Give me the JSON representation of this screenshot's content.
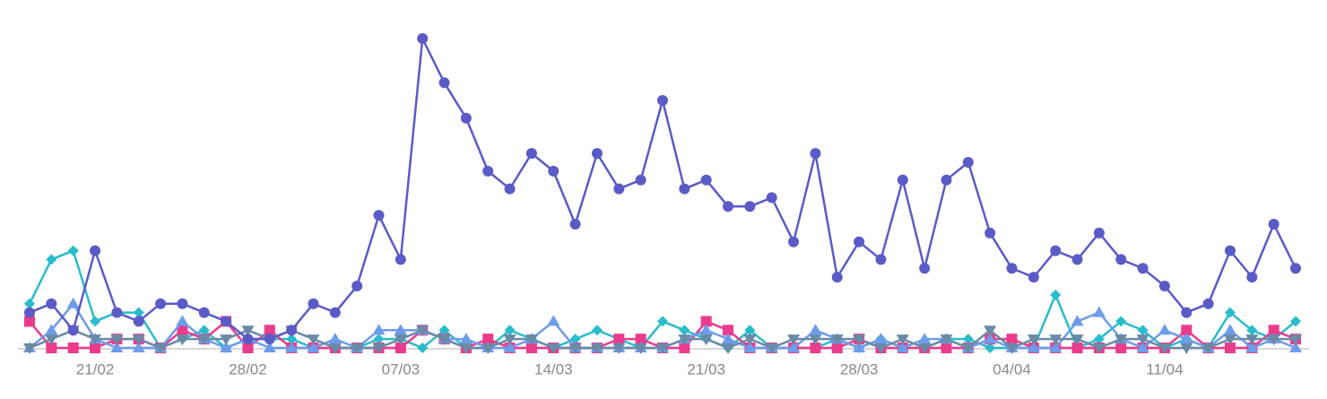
{
  "chart_data": {
    "type": "line",
    "categories": [
      null,
      null,
      null,
      "21/02",
      null,
      null,
      null,
      null,
      null,
      null,
      "28/02",
      null,
      null,
      null,
      null,
      null,
      null,
      "07/03",
      null,
      null,
      null,
      null,
      null,
      null,
      "14/03",
      null,
      null,
      null,
      null,
      null,
      null,
      "21/03",
      null,
      null,
      null,
      null,
      null,
      null,
      "28/03",
      null,
      null,
      null,
      null,
      null,
      null,
      "04/04",
      null,
      null,
      null,
      null,
      null,
      null,
      "11/04",
      null,
      null,
      null,
      null,
      null,
      null
    ],
    "ylim": [
      0,
      35
    ],
    "grid": false,
    "series": [
      {
        "color": "#29bccc",
        "marker": "diamond",
        "values": [
          5,
          10,
          11,
          3,
          4,
          4,
          0,
          1,
          2,
          0,
          1,
          1,
          1,
          0,
          0,
          0,
          1,
          1,
          0,
          2,
          0,
          0,
          2,
          1,
          0,
          1,
          2,
          1,
          0,
          3,
          2,
          1,
          0,
          2,
          0,
          0,
          0,
          1,
          0,
          1,
          0,
          0,
          1,
          1,
          0,
          0,
          0,
          6,
          0,
          1,
          3,
          2,
          0,
          1,
          0,
          4,
          2,
          1,
          3
        ]
      },
      {
        "color": "#ec3a8c",
        "marker": "square",
        "values": [
          3,
          0,
          0,
          0,
          1,
          1,
          0,
          2,
          1,
          3,
          0,
          2,
          0,
          0,
          0,
          0,
          0,
          0,
          2,
          1,
          0,
          1,
          0,
          0,
          0,
          0,
          0,
          1,
          1,
          0,
          0,
          3,
          2,
          0,
          0,
          0,
          0,
          0,
          1,
          0,
          0,
          0,
          0,
          0,
          1,
          1,
          0,
          0,
          0,
          0,
          0,
          0,
          0,
          2,
          0,
          0,
          0,
          2,
          1
        ]
      },
      {
        "color": "#6d9ceb",
        "marker": "triangle",
        "values": [
          0,
          2,
          5,
          1,
          0,
          0,
          0,
          3,
          1,
          0,
          1,
          0,
          0,
          0,
          1,
          0,
          2,
          2,
          2,
          1,
          1,
          0,
          0,
          1,
          3,
          0,
          0,
          0,
          0,
          0,
          1,
          2,
          1,
          0,
          0,
          0,
          2,
          1,
          0,
          1,
          0,
          1,
          1,
          0,
          1,
          0,
          0,
          0,
          3,
          4,
          1,
          0,
          2,
          1,
          0,
          2,
          0,
          1,
          0
        ]
      },
      {
        "color": "#6a8aa6",
        "marker": "triangle-down",
        "values": [
          0,
          1,
          2,
          1,
          1,
          1,
          0,
          1,
          1,
          1,
          2,
          1,
          2,
          1,
          0,
          0,
          0,
          1,
          2,
          1,
          0,
          0,
          1,
          1,
          0,
          0,
          0,
          0,
          0,
          0,
          1,
          1,
          0,
          1,
          0,
          1,
          1,
          1,
          1,
          0,
          1,
          0,
          1,
          0,
          2,
          0,
          1,
          1,
          1,
          0,
          1,
          1,
          0,
          0,
          0,
          1,
          1,
          1,
          1
        ]
      },
      {
        "color": "#5b5bc8",
        "marker": "circle",
        "values": [
          4,
          5,
          2,
          11,
          4,
          3,
          5,
          5,
          4,
          3,
          1,
          1,
          2,
          5,
          4,
          7,
          15,
          10,
          35,
          30,
          26,
          20,
          18,
          22,
          20,
          14,
          22,
          18,
          19,
          28,
          18,
          19,
          16,
          16,
          17,
          12,
          22,
          8,
          12,
          10,
          19,
          9,
          19,
          21,
          13,
          9,
          8,
          11,
          10,
          13,
          10,
          9,
          7,
          4,
          5,
          11,
          8,
          14,
          9
        ]
      }
    ]
  }
}
